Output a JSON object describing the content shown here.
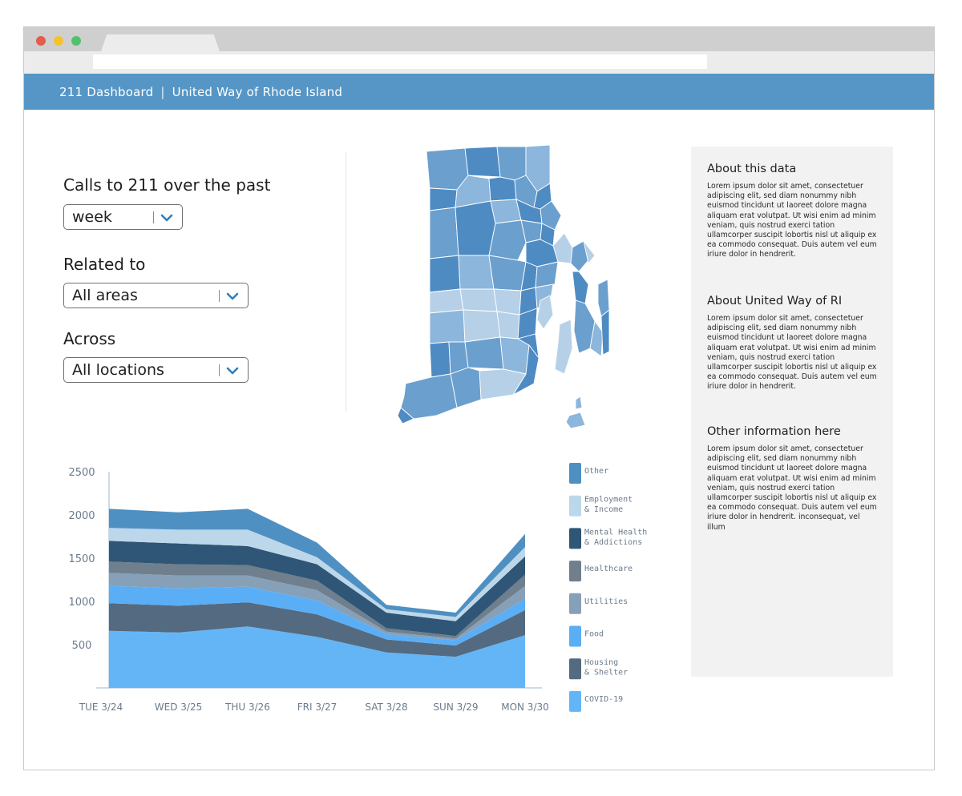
{
  "app": {
    "title": "211 Dashboard",
    "subtitle": "United Way of Rhode Island"
  },
  "filters": [
    {
      "label": "Calls to 211 over the past",
      "value": "week"
    },
    {
      "label": "Related to",
      "value": "All areas"
    },
    {
      "label": "Across",
      "value": "All locations"
    }
  ],
  "panel": [
    {
      "heading": "About this data",
      "body": "Lorem ipsum dolor sit amet, consectetuer adipiscing elit, sed diam nonummy nibh euismod tincidunt ut laoreet dolore magna aliquam erat volutpat. Ut wisi enim ad minim veniam, quis nostrud exerci tation ullamcorper suscipit lobortis nisl ut aliquip ex ea commodo consequat. Duis autem vel eum iriure dolor in hendrerit."
    },
    {
      "heading": "About United Way of RI",
      "body": "Lorem ipsum dolor sit amet, consectetuer adipiscing elit, sed diam nonummy nibh euismod tincidunt ut laoreet dolore magna aliquam erat volutpat. Ut wisi enim ad minim veniam, quis nostrud exerci tation ullamcorper suscipit lobortis nisl ut aliquip ex ea commodo consequat. Duis autem vel eum iriure dolor in hendrerit."
    },
    {
      "heading": "Other information here",
      "body": "Lorem ipsum dolor sit amet, consectetuer adipiscing elit, sed diam nonummy nibh euismod tincidunt ut laoreet dolore magna aliquam erat volutpat. Ut wisi enim ad minim veniam, quis nostrud exerci tation ullamcorper suscipit lobortis nisl ut aliquip ex ea commodo consequat. Duis autem vel eum iriure dolor in hendrerit. inconsequat, vel illum"
    }
  ],
  "colors": {
    "header": "#5596c6",
    "map_shades": [
      "#4f8bc3",
      "#6b9fce",
      "#8cb6db",
      "#b6d0e7"
    ]
  },
  "chart_data": {
    "type": "area",
    "stacked": true,
    "categories": [
      "TUE 3/24",
      "WED 3/25",
      "THU 3/26",
      "FRI 3/27",
      "SAT 3/28",
      "SUN 3/29",
      "MON 3/30"
    ],
    "yticks": [
      500,
      1000,
      1500,
      2000,
      2500
    ],
    "ylim": [
      0,
      2500
    ],
    "legend_position": "right",
    "series": [
      {
        "name": "COVID-19",
        "color": "#64b5f6",
        "values": [
          660,
          640,
          710,
          590,
          410,
          360,
          610
        ]
      },
      {
        "name": "Housing\n& Shelter",
        "color": "#546a80",
        "values": [
          320,
          310,
          280,
          260,
          150,
          130,
          290
        ]
      },
      {
        "name": "Food",
        "color": "#5aaef6",
        "values": [
          200,
          200,
          180,
          160,
          60,
          60,
          130
        ]
      },
      {
        "name": "Utilities",
        "color": "#86a0b8",
        "values": [
          150,
          150,
          130,
          120,
          30,
          20,
          150
        ]
      },
      {
        "name": "Healthcare",
        "color": "#6f7f8d",
        "values": [
          130,
          130,
          120,
          110,
          40,
          30,
          130
        ]
      },
      {
        "name": "Mental Health\n& Addictions",
        "color": "#2f5676",
        "values": [
          240,
          240,
          220,
          190,
          180,
          170,
          210
        ]
      },
      {
        "name": "Employment\n& Income",
        "color": "#bdd7ea",
        "values": [
          150,
          160,
          190,
          80,
          40,
          50,
          110
        ]
      },
      {
        "name": "Other",
        "color": "#4f90c3",
        "values": [
          220,
          200,
          240,
          170,
          50,
          50,
          150
        ]
      }
    ]
  }
}
